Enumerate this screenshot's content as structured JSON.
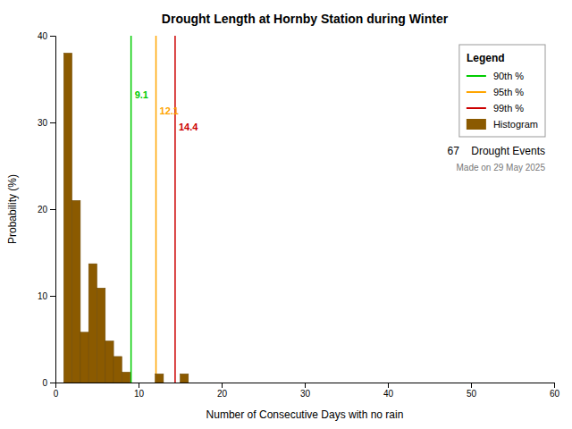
{
  "chart_data": {
    "type": "histogram",
    "title": "Drought Length at Hornby Station during Winter",
    "x_label": "Number of Consecutive Days with no rain",
    "y_label": "Probability (%)",
    "xlim": [
      0,
      60
    ],
    "ylim": [
      0,
      40
    ],
    "xticks": [
      0,
      10,
      20,
      30,
      40,
      50,
      60
    ],
    "yticks": [
      0,
      10,
      20,
      30,
      40
    ],
    "grid": false,
    "legend": "upper right",
    "legend_title": "Legend",
    "series": [
      {
        "name": "90th %",
        "type": "vline",
        "color": "#00CC00",
        "values": [
          9.1
        ],
        "data_labels": true
      },
      {
        "name": "95th %",
        "type": "vline",
        "color": "#FFA500",
        "values": [
          12.1
        ],
        "data_labels": true
      },
      {
        "name": "99th %",
        "type": "vline",
        "color": "#CC0000",
        "values": [
          14.4
        ],
        "data_labels": true
      },
      {
        "name": "Histogram",
        "type": "histogram",
        "color": "#8B5A00",
        "bins": [
          1,
          2,
          3,
          4,
          5,
          6,
          7,
          8,
          9,
          10,
          11,
          12,
          13,
          14,
          15,
          16,
          17,
          18,
          19,
          20,
          21
        ],
        "values": [
          38.0,
          21.0,
          5.8,
          13.7,
          10.9,
          4.8,
          3.0,
          1.2,
          0.0,
          0.0,
          0.0,
          1.0,
          0.0,
          0.0,
          1.0,
          0.0,
          0.0,
          0.0,
          0.0,
          0.0
        ]
      }
    ],
    "annotations": [
      "67    Drought Events",
      "Made on 29 May 2025"
    ]
  }
}
